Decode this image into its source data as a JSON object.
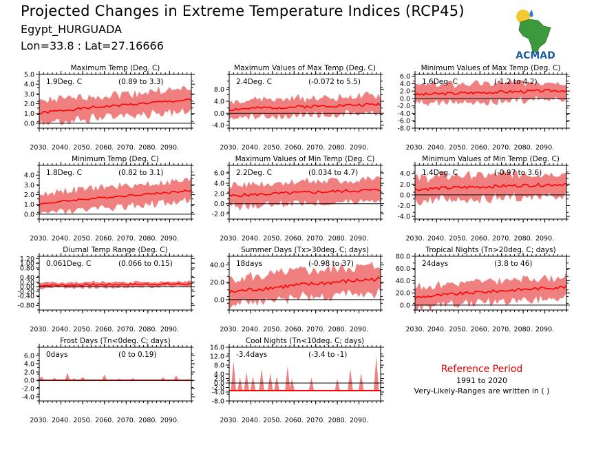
{
  "header": {
    "title": "Projected Changes in Extreme Temperature Indices (RCP45)",
    "station": "Egypt_HURGUADA",
    "coords": "Lon=33.8 : Lat=27.16666",
    "logo_text": "ACMAD"
  },
  "colors": {
    "band": "#f08080",
    "line": "#ff0000",
    "axis": "#000000",
    "zero": "#000000"
  },
  "reference": {
    "title": "Reference Period",
    "period": "1991 to 2020",
    "note": "Very-Likely-Ranges are written in ( )"
  },
  "chart_data": [
    {
      "type": "area",
      "title": "Maximum Temp (Deg. C)",
      "value_label": "1.9Deg. C",
      "range_label": "(0.89 to 3.3)",
      "x_range": [
        2030,
        2100
      ],
      "ylim": [
        -0.5,
        5.0
      ],
      "y_ticks": [
        0.0,
        1.0,
        2.0,
        3.0,
        4.0,
        5.0
      ],
      "x_ticks": [
        "2030.",
        "2040.",
        "2050.",
        "2060.",
        "2070.",
        "2080.",
        "2090."
      ],
      "trend_start": 1.0,
      "trend_end": 2.4,
      "band_width": 1.2,
      "noise": 0.25,
      "seed": 1
    },
    {
      "type": "area",
      "title": "Maximum Values of Max Temp (Deg. C)",
      "value_label": "2.4Deg. C",
      "range_label": "(-0.072 to 5.5)",
      "x_range": [
        2030,
        2100
      ],
      "ylim": [
        -5.0,
        13.0
      ],
      "y_ticks": [
        -4.0,
        0.0,
        4.0,
        8.0
      ],
      "x_ticks": [
        "2030.",
        "2040.",
        "2050.",
        "2060.",
        "2070.",
        "2080.",
        "2090."
      ],
      "trend_start": 1.2,
      "trend_end": 3.0,
      "band_width": 3.0,
      "noise": 1.0,
      "seed": 2
    },
    {
      "type": "area",
      "title": "Minimum Values of Max Temp (Deg. C)",
      "value_label": "1.6Deg. C",
      "range_label": "(-1.2 to 4.2)",
      "x_range": [
        2030,
        2100
      ],
      "ylim": [
        -8.0,
        6.5
      ],
      "y_ticks": [
        -8.0,
        -6.0,
        -4.0,
        -2.0,
        0.0,
        2.0,
        4.0,
        6.0
      ],
      "x_ticks": [
        "2030.",
        "2040.",
        "2050.",
        "2060.",
        "2070.",
        "2080.",
        "2090."
      ],
      "trend_start": 1.0,
      "trend_end": 2.2,
      "band_width": 2.6,
      "noise": 0.8,
      "seed": 3
    },
    {
      "type": "area",
      "title": "Minimum Temp (Deg. C)",
      "value_label": "1.8Deg. C",
      "range_label": "(0.82 to 3.1)",
      "x_range": [
        2030,
        2100
      ],
      "ylim": [
        -0.5,
        5.0
      ],
      "y_ticks": [
        0.0,
        1.0,
        2.0,
        3.0,
        4.0
      ],
      "x_ticks": [
        "2030.",
        "2040.",
        "2050.",
        "2060.",
        "2070.",
        "2080.",
        "2090."
      ],
      "trend_start": 1.0,
      "trend_end": 2.4,
      "band_width": 1.1,
      "noise": 0.2,
      "seed": 4
    },
    {
      "type": "area",
      "title": "Maximum Values of Min Temp (Deg. C)",
      "value_label": "2.2Deg. C",
      "range_label": "(0.034 to 4.7)",
      "x_range": [
        2030,
        2100
      ],
      "ylim": [
        -3.0,
        7.5
      ],
      "y_ticks": [
        -2.0,
        0.0,
        2.0,
        4.0,
        6.0
      ],
      "x_ticks": [
        "2030.",
        "2040.",
        "2050.",
        "2060.",
        "2070.",
        "2080.",
        "2090."
      ],
      "trend_start": 1.5,
      "trend_end": 2.7,
      "band_width": 2.2,
      "noise": 0.6,
      "seed": 5
    },
    {
      "type": "area",
      "title": "Minimum Values of Min Temp (Deg. C)",
      "value_label": "1.4Deg. C",
      "range_label": "(-0.97 to 3.6)",
      "x_range": [
        2030,
        2100
      ],
      "ylim": [
        -4.5,
        5.5
      ],
      "y_ticks": [
        -4.0,
        -2.0,
        0.0,
        2.0,
        4.0
      ],
      "x_ticks": [
        "2030.",
        "2040.",
        "2050.",
        "2060.",
        "2070.",
        "2080.",
        "2090."
      ],
      "trend_start": 1.0,
      "trend_end": 2.0,
      "band_width": 2.3,
      "noise": 0.6,
      "seed": 6
    },
    {
      "type": "area",
      "title": "Diurnal Temp Range (Deg. C)",
      "value_label": "0.061Deg. C",
      "range_label": "(0.066 to 0.15)",
      "x_range": [
        2030,
        2100
      ],
      "ylim": [
        -1.0,
        1.3
      ],
      "y_ticks": [
        -0.8,
        -0.4,
        -0.2,
        0.0,
        0.2,
        0.4,
        0.8,
        1.0,
        1.2
      ],
      "x_ticks": [
        "2030.",
        "2040.",
        "2050.",
        "2060.",
        "2070.",
        "2080.",
        "2090."
      ],
      "trend_start": 0.05,
      "trend_end": 0.12,
      "band_width": 0.12,
      "noise": 0.08,
      "seed": 7
    },
    {
      "type": "area",
      "title": "Summer Days (Tx>30deg. C; days)",
      "value_label": "18days",
      "range_label": "(-0.98 to 37)",
      "x_range": [
        2030,
        2100
      ],
      "ylim": [
        -12.0,
        50.0
      ],
      "y_ticks": [
        0.0,
        20.0,
        40.0
      ],
      "x_ticks": [
        "2030.",
        "2040.",
        "2050.",
        "2060.",
        "2070.",
        "2080.",
        "2090."
      ],
      "trend_start": 8.0,
      "trend_end": 24.0,
      "band_width": 16.0,
      "noise": 5.0,
      "seed": 8
    },
    {
      "type": "area",
      "title": "Tropical Nights (Tn>20deg. C; days)",
      "value_label": "24days",
      "range_label": "(3.8 to 46)",
      "x_range": [
        2030,
        2100
      ],
      "ylim": [
        -8.0,
        80.0
      ],
      "y_ticks": [
        0.0,
        20.0,
        40.0,
        60.0,
        80.0
      ],
      "x_ticks": [
        "2030.",
        "2040.",
        "2050.",
        "2060.",
        "2070.",
        "2080.",
        "2090."
      ],
      "trend_start": 12.0,
      "trend_end": 30.0,
      "band_width": 18.0,
      "noise": 5.0,
      "seed": 9
    },
    {
      "type": "area",
      "title": "Frost Days (Tn<0deg. C; days)",
      "value_label": "0days",
      "range_label": "(0 to 0.19)",
      "x_range": [
        2030,
        2100
      ],
      "ylim": [
        -5.0,
        8.0
      ],
      "y_ticks": [
        -4.0,
        -2.0,
        0.0,
        2.0,
        4.0,
        6.0
      ],
      "x_ticks": [
        "2030.",
        "2040.",
        "2050.",
        "2060.",
        "2070.",
        "2080.",
        "2090."
      ],
      "spikes": [
        [
          2031,
          1.0
        ],
        [
          2037,
          0.6
        ],
        [
          2043,
          1.8
        ],
        [
          2046,
          0.5
        ],
        [
          2050,
          0.9
        ],
        [
          2060,
          1.4
        ],
        [
          2067,
          0.4
        ],
        [
          2073,
          0.5
        ],
        [
          2087,
          0.7
        ],
        [
          2093,
          1.2
        ]
      ],
      "seed": 10
    },
    {
      "type": "area",
      "title": "Cool Nights (Tn<10deg. C; days)",
      "value_label": "-3.4days",
      "range_label": "(-3.4 to -1)",
      "x_range": [
        2030,
        2100
      ],
      "ylim": [
        -8.0,
        16.0
      ],
      "y_ticks": [
        -8.0,
        -4.0,
        -2.0,
        0.0,
        2.0,
        4.0,
        8.0,
        12.0,
        16.0
      ],
      "x_ticks": [
        "2030.",
        "2040.",
        "2050.",
        "2060.",
        "2070.",
        "2080.",
        "2090."
      ],
      "baseline": -3.4,
      "spikes": [
        [
          2032,
          10.0
        ],
        [
          2035,
          2.5
        ],
        [
          2038,
          5.0
        ],
        [
          2041,
          3.0
        ],
        [
          2045,
          6.5
        ],
        [
          2049,
          4.5
        ],
        [
          2052,
          3.0
        ],
        [
          2057,
          7.5
        ],
        [
          2059,
          2.0
        ],
        [
          2068,
          2.5
        ],
        [
          2080,
          2.0
        ],
        [
          2086,
          6.5
        ],
        [
          2091,
          4.5
        ],
        [
          2098,
          12.0
        ]
      ],
      "seed": 11
    }
  ]
}
